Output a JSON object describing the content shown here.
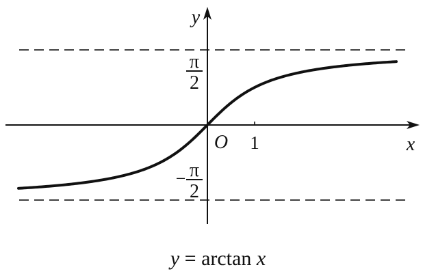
{
  "chart_data": {
    "type": "line",
    "function": "arctan",
    "xlim": [
      -4.2,
      4.2
    ],
    "ylim": [
      -2.0,
      2.3
    ],
    "axis_labels": {
      "x": "x",
      "y": "y",
      "origin": "O"
    },
    "x_ticks": [
      {
        "value": 1,
        "label": "1"
      }
    ],
    "y_ticks": [
      {
        "value": 1.5708,
        "label_numerator": "π",
        "label_denominator": "2",
        "sign": ""
      },
      {
        "value": -1.5708,
        "label_numerator": "π",
        "label_denominator": "2",
        "sign": "−"
      }
    ],
    "asymptotes": [
      {
        "y": 1.5708,
        "style": "dashed"
      },
      {
        "y": -1.5708,
        "style": "dashed"
      }
    ],
    "series": [
      {
        "x_range": [
          -4.0,
          4.0
        ],
        "color": "#111111"
      }
    ],
    "caption": {
      "y": "y",
      "eq": "=",
      "fn": "arctan",
      "x": "x"
    }
  }
}
